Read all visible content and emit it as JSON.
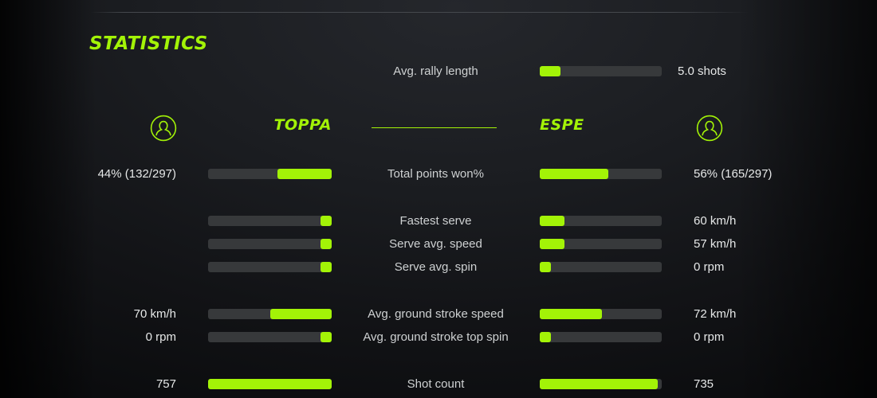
{
  "colors": {
    "accent": "#a3f307",
    "track": "#37393b",
    "value_text": "#e6e8e8",
    "label_text": "#ced1d2",
    "hairline": "#45484d"
  },
  "header": {
    "title": "STATISTICS"
  },
  "players": {
    "left": {
      "name": "TOPPA"
    },
    "right": {
      "name": "ESPE"
    }
  },
  "rally": {
    "label": "Avg. rally length",
    "value": "5.0 shots",
    "fill_pct": 17
  },
  "stats": [
    {
      "label": "Total points won%",
      "left_value": "44% (132/297)",
      "left_pct": 44,
      "right_value": "56% (165/297)",
      "right_pct": 56,
      "gap_before": false
    },
    {
      "label": "Fastest serve",
      "left_value": "",
      "left_pct": 9,
      "right_value": "60 km/h",
      "right_pct": 20,
      "gap_before": true
    },
    {
      "label": "Serve avg. speed",
      "left_value": "",
      "left_pct": 9,
      "right_value": "57 km/h",
      "right_pct": 20,
      "gap_before": false
    },
    {
      "label": "Serve avg. spin",
      "left_value": "",
      "left_pct": 9,
      "right_value": "0 rpm",
      "right_pct": 9,
      "gap_before": false
    },
    {
      "label": "Avg. ground stroke speed",
      "left_value": "70 km/h",
      "left_pct": 50,
      "right_value": "72 km/h",
      "right_pct": 51,
      "gap_before": true
    },
    {
      "label": "Avg. ground stroke top spin",
      "left_value": "0 rpm",
      "left_pct": 9,
      "right_value": "0 rpm",
      "right_pct": 9,
      "gap_before": false
    },
    {
      "label": "Shot count",
      "left_value": "757",
      "left_pct": 100,
      "right_value": "735",
      "right_pct": 97,
      "gap_before": true
    }
  ]
}
